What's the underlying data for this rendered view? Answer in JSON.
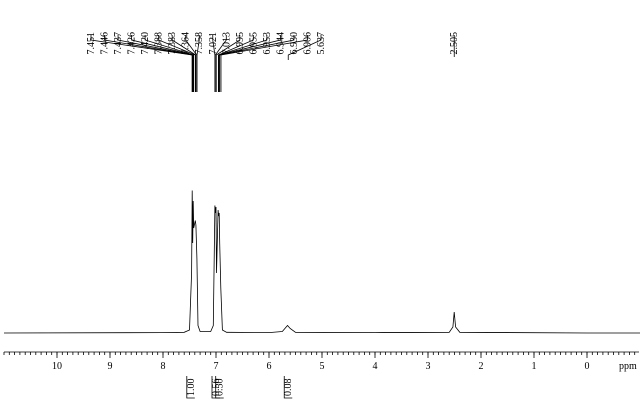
{
  "chart_data": {
    "type": "line",
    "xlabel": "ppm",
    "xlim": [
      11,
      -1
    ],
    "xticks": [
      10,
      9,
      8,
      7,
      6,
      5,
      4,
      3,
      2,
      1,
      0
    ],
    "minor_ticks_per_major": 10,
    "ylim": [
      0,
      100
    ],
    "color": "#000000",
    "x": [
      11,
      8,
      7.6,
      7.5,
      7.46,
      7.45,
      7.44,
      7.43,
      7.42,
      7.39,
      7.38,
      7.36,
      7.34,
      7.3,
      7.1,
      7.05,
      7.02,
      7.01,
      7.0,
      6.99,
      6.96,
      6.95,
      6.94,
      6.93,
      6.91,
      6.88,
      6.8,
      6.0,
      5.75,
      5.65,
      5.6,
      5.5,
      4.0,
      2.6,
      2.53,
      2.505,
      2.48,
      2.4,
      0,
      -1
    ],
    "values": [
      0,
      0.3,
      0.5,
      2,
      40,
      95,
      60,
      88,
      70,
      75,
      72,
      50,
      5,
      1,
      1,
      5,
      85,
      80,
      84,
      40,
      82,
      78,
      80,
      60,
      30,
      2,
      0.5,
      0.3,
      1,
      5,
      3,
      0.5,
      0.3,
      0.5,
      4,
      14,
      4,
      0.5,
      0,
      0
    ],
    "peak_labels": [
      7.451,
      7.446,
      7.437,
      7.426,
      {
        "value": 7.42,
        "label": "7.420"
      },
      7.388,
      7.383,
      7.364,
      7.358,
      7.021,
      7.013,
      6.995,
      6.955,
      6.953,
      6.944,
      {
        "value": 6.93,
        "label": "6.930"
      },
      6.906,
      5.637
    ],
    "single_peak_label": 2.505,
    "integrals": [
      {
        "ppm": 7.4,
        "value": 1,
        "label": "1.00"
      },
      {
        "ppm": 7.0,
        "value": 0.56,
        "label": "0.56"
      },
      {
        "ppm": 6.93,
        "value": 0.5,
        "label": "0.50"
      },
      {
        "ppm": 5.637,
        "value": 0.08,
        "label": "0.08"
      }
    ]
  }
}
